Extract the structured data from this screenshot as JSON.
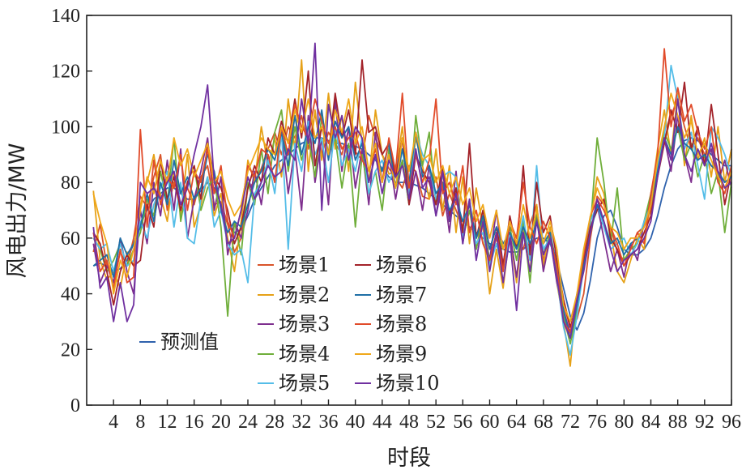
{
  "chart_data": {
    "type": "line",
    "title": "",
    "xlabel": "时段",
    "ylabel": "风电出力/MW",
    "xlim": [
      0,
      96
    ],
    "ylim": [
      0,
      140
    ],
    "xticks": [
      4,
      8,
      12,
      16,
      20,
      24,
      28,
      32,
      36,
      40,
      44,
      48,
      52,
      56,
      60,
      64,
      68,
      72,
      76,
      80,
      84,
      88,
      92,
      96
    ],
    "yticks": [
      0,
      20,
      40,
      60,
      80,
      100,
      120,
      140
    ],
    "x": [
      1,
      2,
      3,
      4,
      5,
      6,
      7,
      8,
      9,
      10,
      11,
      12,
      13,
      14,
      15,
      16,
      17,
      18,
      19,
      20,
      21,
      22,
      23,
      24,
      25,
      26,
      27,
      28,
      29,
      30,
      31,
      32,
      33,
      34,
      35,
      36,
      37,
      38,
      39,
      40,
      41,
      42,
      43,
      44,
      45,
      46,
      47,
      48,
      49,
      50,
      51,
      52,
      53,
      54,
      55,
      56,
      57,
      58,
      59,
      60,
      61,
      62,
      63,
      64,
      65,
      66,
      67,
      68,
      69,
      70,
      71,
      72,
      73,
      74,
      75,
      76,
      77,
      78,
      79,
      80,
      81,
      82,
      83,
      84,
      85,
      86,
      87,
      88,
      89,
      90,
      91,
      92,
      93,
      94,
      95,
      96
    ],
    "legend": [
      {
        "label": "场景1",
        "color": "#d9542a"
      },
      {
        "label": "场景2",
        "color": "#e6a117"
      },
      {
        "label": "场景3",
        "color": "#7e2f8e"
      },
      {
        "label": "场景4",
        "color": "#6fae3a"
      },
      {
        "label": "场景5",
        "color": "#54bde8"
      },
      {
        "label": "场景6",
        "color": "#a3232a"
      },
      {
        "label": "场景7",
        "color": "#1f6fa6"
      },
      {
        "label": "场景8",
        "color": "#e14b2a"
      },
      {
        "label": "场景9",
        "color": "#f0a81a"
      },
      {
        "label": "场景10",
        "color": "#7030a0"
      }
    ],
    "forecast_label": "预测值",
    "forecast_color": "#2f62ad",
    "series": [
      {
        "name": "预测值",
        "values": [
          50,
          51,
          50,
          48,
          49,
          52,
          58,
          65,
          70,
          74,
          76,
          78,
          78,
          76,
          74,
          74,
          77,
          80,
          78,
          72,
          65,
          62,
          63,
          68,
          74,
          78,
          82,
          86,
          88,
          90,
          92,
          94,
          95,
          96,
          96,
          95,
          94,
          94,
          93,
          93,
          92,
          90,
          88,
          85,
          82,
          80,
          80,
          80,
          79,
          78,
          76,
          74,
          72,
          70,
          68,
          66,
          64,
          62,
          60,
          58,
          57,
          56,
          55,
          55,
          56,
          58,
          60,
          60,
          58,
          52,
          42,
          32,
          27,
          33,
          45,
          60,
          68,
          70,
          64,
          56,
          54,
          54,
          56,
          60,
          68,
          78,
          86,
          92,
          95,
          96,
          95,
          93,
          90,
          88,
          86,
          86
        ]
      },
      {
        "name": "场景1",
        "values": [
          55,
          65,
          50,
          44,
          55,
          50,
          60,
          75,
          71,
          82,
          90,
          70,
          80,
          76,
          78,
          72,
          82,
          86,
          72,
          73,
          65,
          55,
          60,
          78,
          80,
          85,
          92,
          98,
          90,
          100,
          96,
          104,
          92,
          105,
          90,
          98,
          94,
          90,
          99,
          91,
          88,
          104,
          96,
          90,
          85,
          82,
          78,
          86,
          84,
          75,
          74,
          82,
          68,
          76,
          70,
          64,
          72,
          60,
          65,
          52,
          60,
          51,
          64,
          60,
          56,
          65,
          72,
          52,
          60,
          50,
          36,
          28,
          31,
          40,
          60,
          75,
          72,
          64,
          55,
          52,
          56,
          62,
          64,
          70,
          84,
          94,
          104,
          110,
          100,
          92,
          96,
          90,
          86,
          84,
          80,
          92
        ]
      },
      {
        "name": "场景2",
        "values": [
          77,
          52,
          45,
          48,
          42,
          55,
          50,
          72,
          80,
          90,
          75,
          66,
          84,
          68,
          90,
          64,
          72,
          82,
          68,
          76,
          60,
          48,
          66,
          88,
          80,
          100,
          86,
          96,
          82,
          110,
          92,
          124,
          84,
          106,
          88,
          112,
          92,
          104,
          84,
          116,
          94,
          80,
          106,
          90,
          83,
          84,
          100,
          76,
          96,
          86,
          74,
          92,
          70,
          86,
          62,
          82,
          58,
          78,
          64,
          40,
          56,
          42,
          62,
          44,
          64,
          48,
          72,
          50,
          64,
          44,
          30,
          14,
          40,
          52,
          66,
          82,
          76,
          62,
          48,
          44,
          52,
          60,
          56,
          74,
          92,
          106,
          90,
          112,
          86,
          104,
          88,
          96,
          82,
          100,
          80,
          92
        ]
      },
      {
        "name": "场景3",
        "values": [
          58,
          44,
          50,
          44,
          60,
          48,
          40,
          70,
          58,
          80,
          68,
          88,
          70,
          92,
          60,
          74,
          84,
          96,
          70,
          82,
          54,
          66,
          60,
          70,
          84,
          72,
          90,
          80,
          98,
          76,
          92,
          70,
          104,
          80,
          96,
          72,
          110,
          84,
          100,
          78,
          92,
          72,
          98,
          80,
          90,
          74,
          88,
          72,
          84,
          70,
          86,
          68,
          80,
          62,
          84,
          58,
          74,
          56,
          66,
          52,
          70,
          50,
          62,
          46,
          66,
          52,
          68,
          48,
          60,
          44,
          34,
          26,
          40,
          50,
          62,
          72,
          60,
          48,
          56,
          46,
          58,
          52,
          66,
          74,
          88,
          96,
          84,
          104,
          90,
          80,
          100,
          86,
          92,
          80,
          88,
          78
        ]
      },
      {
        "name": "场景4",
        "values": [
          60,
          56,
          48,
          52,
          58,
          50,
          56,
          62,
          74,
          68,
          84,
          72,
          96,
          66,
          80,
          86,
          70,
          78,
          82,
          64,
          32,
          66,
          54,
          80,
          72,
          92,
          76,
          98,
          106,
          84,
          100,
          88,
          96,
          82,
          104,
          90,
          96,
          78,
          94,
          64,
          90,
          76,
          84,
          70,
          92,
          78,
          88,
          72,
          104,
          86,
          98,
          72,
          84,
          66,
          78,
          60,
          70,
          56,
          68,
          50,
          62,
          56,
          64,
          52,
          66,
          44,
          70,
          54,
          62,
          48,
          32,
          22,
          34,
          50,
          64,
          96,
          80,
          58,
          78,
          52,
          56,
          58,
          66,
          76,
          88,
          98,
          92,
          100,
          88,
          94,
          82,
          90,
          76,
          84,
          62,
          80
        ]
      },
      {
        "name": "场景5",
        "values": [
          60,
          56,
          58,
          48,
          58,
          50,
          52,
          66,
          60,
          72,
          78,
          84,
          64,
          80,
          60,
          58,
          74,
          82,
          64,
          70,
          58,
          54,
          56,
          44,
          76,
          80,
          88,
          76,
          98,
          56,
          94,
          84,
          102,
          90,
          96,
          80,
          100,
          86,
          92,
          84,
          96,
          76,
          84,
          88,
          80,
          86,
          92,
          76,
          98,
          90,
          86,
          74,
          82,
          84,
          82,
          60,
          74,
          58,
          62,
          50,
          58,
          48,
          62,
          56,
          68,
          52,
          86,
          56,
          60,
          46,
          28,
          18,
          32,
          50,
          66,
          72,
          64,
          56,
          58,
          60,
          54,
          58,
          66,
          72,
          86,
          96,
          122,
          110,
          92,
          98,
          86,
          74,
          100,
          96,
          90,
          82
        ]
      },
      {
        "name": "场景6",
        "values": [
          62,
          58,
          48,
          36,
          48,
          54,
          50,
          52,
          72,
          64,
          88,
          74,
          82,
          70,
          80,
          86,
          74,
          94,
          82,
          78,
          70,
          58,
          64,
          78,
          86,
          80,
          96,
          90,
          102,
          94,
          110,
          96,
          120,
          86,
          100,
          90,
          112,
          96,
          106,
          90,
          124,
          98,
          100,
          90,
          94,
          82,
          96,
          72,
          90,
          84,
          80,
          72,
          86,
          68,
          78,
          62,
          94,
          60,
          70,
          56,
          64,
          50,
          68,
          56,
          86,
          54,
          80,
          62,
          68,
          52,
          38,
          28,
          36,
          52,
          64,
          70,
          74,
          60,
          56,
          50,
          54,
          56,
          62,
          68,
          82,
          94,
          106,
          98,
          116,
          92,
          100,
          86,
          108,
          90,
          72,
          84
        ]
      },
      {
        "name": "场景7",
        "values": [
          50,
          52,
          54,
          46,
          60,
          54,
          58,
          64,
          76,
          66,
          80,
          72,
          88,
          76,
          82,
          74,
          78,
          90,
          84,
          70,
          62,
          66,
          64,
          72,
          80,
          84,
          92,
          88,
          98,
          86,
          104,
          90,
          100,
          94,
          106,
          88,
          102,
          96,
          100,
          88,
          94,
          80,
          90,
          84,
          94,
          78,
          92,
          80,
          98,
          82,
          86,
          76,
          80,
          70,
          74,
          66,
          72,
          60,
          68,
          56,
          64,
          58,
          62,
          56,
          64,
          58,
          66,
          58,
          62,
          50,
          34,
          24,
          36,
          50,
          62,
          72,
          66,
          58,
          60,
          54,
          58,
          60,
          64,
          72,
          84,
          96,
          90,
          100,
          94,
          92,
          88,
          90,
          86,
          84,
          80,
          82
        ]
      },
      {
        "name": "场景8",
        "values": [
          62,
          48,
          52,
          42,
          56,
          44,
          46,
          99,
          64,
          88,
          72,
          82,
          78,
          90,
          70,
          84,
          80,
          92,
          76,
          86,
          66,
          60,
          70,
          86,
          82,
          92,
          90,
          80,
          100,
          90,
          108,
          100,
          96,
          110,
          102,
          94,
          100,
          92,
          96,
          98,
          88,
          84,
          92,
          80,
          96,
          84,
          112,
          78,
          90,
          80,
          88,
          110,
          76,
          80,
          72,
          86,
          62,
          70,
          58,
          52,
          62,
          48,
          66,
          60,
          80,
          64,
          58,
          66,
          60,
          50,
          30,
          26,
          38,
          54,
          68,
          74,
          70,
          64,
          58,
          50,
          56,
          62,
          58,
          76,
          90,
          128,
          100,
          114,
          102,
          108,
          98,
          92,
          100,
          80,
          76,
          86
        ]
      },
      {
        "name": "场景9",
        "values": [
          76,
          66,
          58,
          40,
          52,
          46,
          56,
          70,
          82,
          76,
          88,
          80,
          96,
          86,
          92,
          82,
          88,
          94,
          80,
          84,
          74,
          68,
          72,
          84,
          90,
          96,
          92,
          90,
          100,
          94,
          106,
          98,
          110,
          96,
          100,
          90,
          106,
          98,
          110,
          94,
          100,
          84,
          94,
          80,
          90,
          78,
          96,
          84,
          98,
          88,
          90,
          80,
          86,
          76,
          82,
          72,
          78,
          66,
          72,
          60,
          70,
          56,
          66,
          58,
          72,
          60,
          70,
          58,
          66,
          56,
          36,
          30,
          40,
          56,
          68,
          78,
          72,
          64,
          62,
          56,
          60,
          60,
          64,
          72,
          88,
          100,
          112,
          104,
          96,
          102,
          90,
          94,
          88,
          82,
          78,
          84
        ]
      },
      {
        "name": "场景10",
        "values": [
          64,
          42,
          46,
          30,
          44,
          30,
          36,
          80,
          76,
          78,
          74,
          80,
          84,
          72,
          78,
          90,
          100,
          115,
          80,
          72,
          58,
          60,
          70,
          82,
          74,
          80,
          86,
          82,
          84,
          92,
          88,
          110,
          94,
          130,
          70,
          108,
          96,
          104,
          88,
          100,
          96,
          80,
          90,
          76,
          88,
          82,
          86,
          74,
          92,
          78,
          82,
          68,
          84,
          66,
          76,
          58,
          74,
          52,
          66,
          48,
          62,
          44,
          60,
          34,
          62,
          48,
          66,
          54,
          60,
          46,
          30,
          24,
          38,
          48,
          62,
          74,
          66,
          56,
          48,
          52,
          54,
          56,
          60,
          66,
          82,
          96,
          88,
          110,
          90,
          84,
          92,
          86,
          94,
          84,
          78,
          80
        ]
      }
    ]
  }
}
